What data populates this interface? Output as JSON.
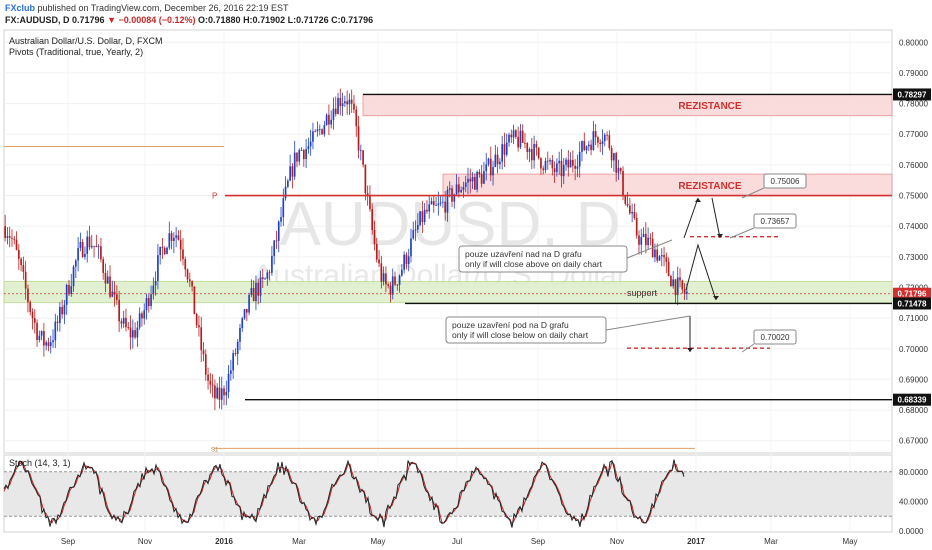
{
  "header": {
    "brand": "FXclub",
    "published": " published on TradingView.com, December 26, 2016 22:19 EST",
    "symbol_line": "FX:AUDUSD, D  0.71796",
    "change": "▼ −0.00084 (−0.12%)",
    "ohlc": " O:0.71880 H:0.71902 L:0.71726 C:0.71796"
  },
  "chart_title": "Australian Dollar/U.S. Dollar, D, FXCM",
  "indicator": "Pivots (Traditional, true, Yearly, 2)",
  "stoch_label": "Stoch (14, 3, 1)",
  "watermark": {
    "symbol": "AUDUSD, D",
    "name": "Australian Dollar/U.S. Dollar"
  },
  "colors": {
    "up": "#1e40c8",
    "down": "#b71c1c",
    "resistance": "#d32f2f",
    "zone_red": "#f9d6d6",
    "zone_green": "#dcedc8",
    "stoch_k": "#222222",
    "stoch_d": "#c62828"
  },
  "chart_data": {
    "type": "candlestick",
    "symbol": "FX:AUDUSD",
    "timeframe": "D",
    "x_ticks": [
      "Sep",
      "Nov",
      "2016",
      "Mar",
      "May",
      "Jul",
      "Sep",
      "Nov",
      "2017",
      "Mar",
      "May"
    ],
    "y_ticks": [
      "0.80000",
      "0.79000",
      "0.78000",
      "0.77000",
      "0.76000",
      "0.75000",
      "0.74000",
      "0.73000",
      "0.72000",
      "0.71000",
      "0.70000",
      "0.69000",
      "0.68000",
      "0.67000"
    ],
    "ylim": [
      0.666,
      0.804
    ],
    "price_labels": [
      {
        "value": 0.78297,
        "text": "0.78297"
      },
      {
        "value": 0.71796,
        "text": "0.71796"
      },
      {
        "value": 0.71478,
        "text": "0.71478"
      },
      {
        "value": 0.68339,
        "text": "0.68339"
      }
    ],
    "key_points": [
      {
        "x": "Aug 2015",
        "y": 0.74
      },
      {
        "x": "Sep 2015",
        "y": 0.702
      },
      {
        "x": "Oct 2015",
        "y": 0.735
      },
      {
        "x": "Nov 2015",
        "y": 0.705
      },
      {
        "x": "Dec 2015",
        "y": 0.738
      },
      {
        "x": "Jan 2016",
        "y": 0.684
      },
      {
        "x": "Feb 2016",
        "y": 0.72
      },
      {
        "x": "Mar 2016",
        "y": 0.765
      },
      {
        "x": "Apr 2016",
        "y": 0.782
      },
      {
        "x": "May 2016",
        "y": 0.72
      },
      {
        "x": "Jun 2016",
        "y": 0.745
      },
      {
        "x": "Jul 2016",
        "y": 0.755
      },
      {
        "x": "Aug 2016",
        "y": 0.768
      },
      {
        "x": "Sep 2016",
        "y": 0.758
      },
      {
        "x": "Oct 2016",
        "y": 0.77
      },
      {
        "x": "Nov 2016",
        "y": 0.735
      },
      {
        "x": "Dec 2016",
        "y": 0.718
      }
    ],
    "levels": [
      {
        "label": "REZISTANCE",
        "from": 0.776,
        "to": 0.783
      },
      {
        "label": "REZISTANCE",
        "from": 0.75,
        "to": 0.757
      },
      {
        "label": "support",
        "from": 0.715,
        "to": 0.722
      }
    ],
    "pivot_label": "P",
    "pivot_value": 0.75,
    "s1_label": "S1",
    "targets": [
      {
        "text": "0.75006",
        "value": 0.75006
      },
      {
        "text": "0.73657",
        "value": 0.73657
      },
      {
        "text": "0.70020",
        "value": 0.7002
      }
    ],
    "annotations": [
      {
        "line1": "pouze uzavření nad na D grafu",
        "line2": "only if will close above on daily chart"
      },
      {
        "line1": "pouze uzavření pod na D grafu",
        "line2": "only if will close below on daily chart"
      }
    ],
    "stoch": {
      "params": "14, 3, 1",
      "y_ticks": [
        "80.0000",
        "40.0000",
        "0.0000"
      ],
      "band": [
        20,
        80
      ],
      "ylim": [
        0,
        100
      ]
    }
  }
}
